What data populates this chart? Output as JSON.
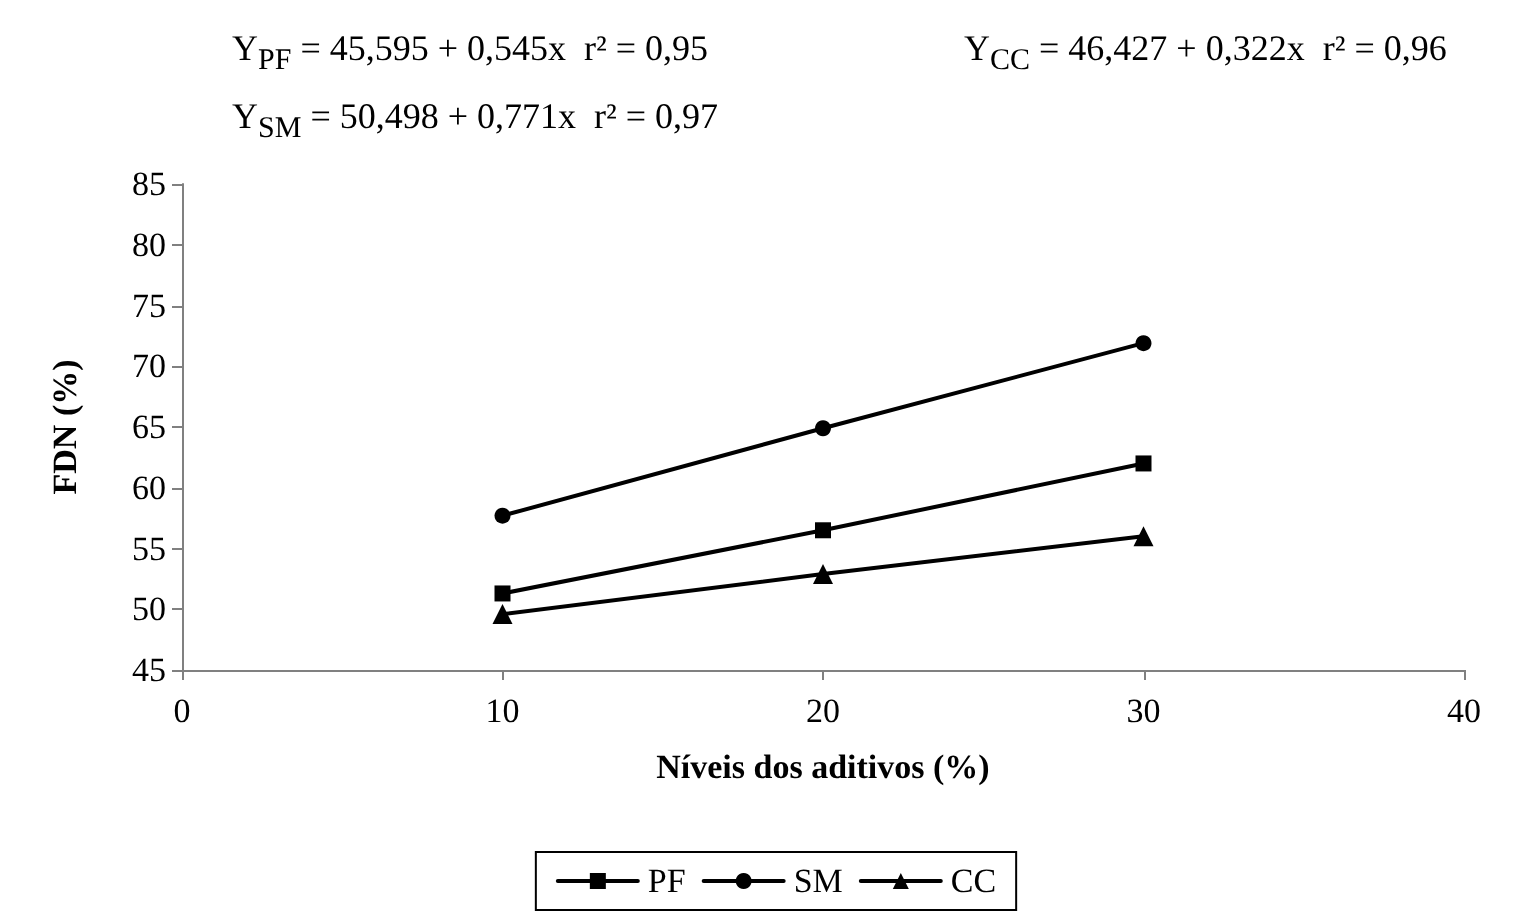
{
  "chart_data": {
    "type": "line",
    "xlabel": "Níveis dos aditivos (%)",
    "ylabel": "FDN (%)",
    "annotations": [
      "Y$_{PF}$ = 45,595 + 0,545x  r² = 0,95",
      "Y$_{SM}$ = 50,498 + 0,771x  r² = 0,97",
      "Y$_{CC}$ = 46,427 + 0,322x  r² = 0,96"
    ],
    "x": [
      10,
      20,
      30
    ],
    "series": [
      {
        "name": "PF",
        "color": "#000000",
        "marker": "square",
        "values": [
          51.3,
          56.5,
          62.0
        ]
      },
      {
        "name": "SM",
        "color": "#000000",
        "marker": "circle",
        "values": [
          57.7,
          64.9,
          71.9
        ]
      },
      {
        "name": "CC",
        "color": "#000000",
        "marker": "triangle",
        "values": [
          49.6,
          52.9,
          56.0
        ]
      }
    ],
    "xlim": [
      0,
      40
    ],
    "xticks": [
      0,
      10,
      20,
      30,
      40
    ],
    "ylim": [
      45,
      85
    ],
    "yticks": [
      45,
      50,
      55,
      60,
      65,
      70,
      75,
      80,
      85
    ],
    "grid": false,
    "legend": "bottom",
    "line_style": "solid"
  }
}
